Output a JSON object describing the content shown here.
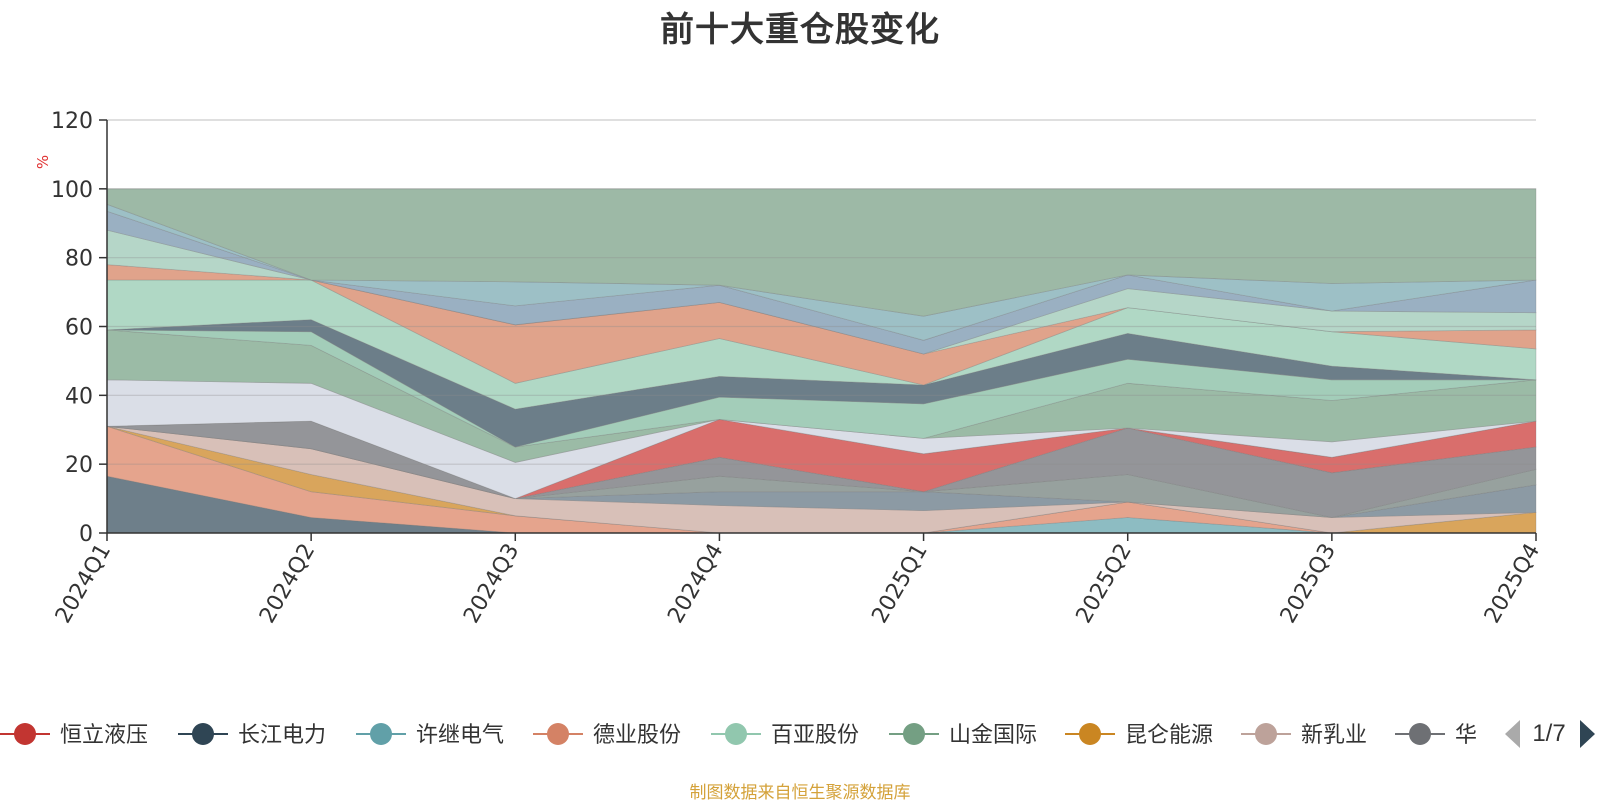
{
  "title": "前十大重仓股变化",
  "source": "制图数据来自恒生聚源数据库",
  "legend": {
    "page": "1/7",
    "items": [
      {
        "name": "恒立液压",
        "color": "#c23531"
      },
      {
        "name": "长江电力",
        "color": "#2f4554"
      },
      {
        "name": "许继电气",
        "color": "#61a0a8"
      },
      {
        "name": "德业股份",
        "color": "#d48265"
      },
      {
        "name": "百亚股份",
        "color": "#91c7ae"
      },
      {
        "name": "山金国际",
        "color": "#749f83"
      },
      {
        "name": "昆仑能源",
        "color": "#ca8622"
      },
      {
        "name": "新乳业",
        "color": "#bda29a"
      },
      {
        "name": "华",
        "color": "#6e7074"
      }
    ]
  },
  "chart_data": {
    "type": "area",
    "stacked": true,
    "ylabel": "%",
    "ylim": [
      0,
      120
    ],
    "yticks": [
      0,
      20,
      40,
      60,
      80,
      100,
      120
    ],
    "categories": [
      "2024Q1",
      "2024Q2",
      "2024Q3",
      "2024Q4",
      "2025Q1",
      "2025Q2",
      "2025Q3",
      "2025Q4"
    ],
    "cumulative_boundaries": [
      [
        16.5,
        4.5,
        0,
        0,
        0,
        0,
        0,
        0
      ],
      [
        16.5,
        4.5,
        0,
        0,
        0,
        4.5,
        0,
        0
      ],
      [
        31,
        12,
        5,
        0,
        0,
        9,
        0,
        0
      ],
      [
        31,
        17,
        5,
        0,
        0,
        9,
        0,
        6
      ],
      [
        31,
        24.5,
        10,
        8,
        6.5,
        9,
        4.5,
        6
      ],
      [
        31,
        24.5,
        10,
        12,
        12,
        9,
        4.5,
        14
      ],
      [
        31,
        24.5,
        10,
        16.5,
        12,
        17,
        4.5,
        18.5
      ],
      [
        31,
        32.5,
        10,
        22,
        12,
        30.5,
        17.5,
        25
      ],
      [
        31,
        32.5,
        10,
        33,
        23,
        30.5,
        22,
        32.5
      ],
      [
        44.5,
        43.5,
        20.5,
        33,
        27.5,
        30.5,
        26.5,
        32.5
      ],
      [
        59,
        54.5,
        25,
        33,
        27.5,
        43.5,
        38.5,
        44.5
      ],
      [
        59,
        58.5,
        25,
        39.5,
        37.5,
        50.5,
        44.5,
        44.5
      ],
      [
        59,
        62,
        36,
        45.5,
        43,
        58,
        48.5,
        44.5
      ],
      [
        73.5,
        73.5,
        43.5,
        56.5,
        43,
        65.5,
        58.5,
        53.5
      ],
      [
        78,
        73.5,
        60.5,
        67,
        52,
        65.5,
        58.5,
        59
      ],
      [
        88,
        73.5,
        60.5,
        67,
        52,
        71,
        64.5,
        64
      ],
      [
        93.5,
        73.5,
        66,
        72,
        56,
        75,
        64.5,
        73.5
      ],
      [
        95.5,
        73.5,
        73,
        72,
        63,
        75,
        72.5,
        73.5
      ],
      [
        100,
        100,
        100,
        100,
        100,
        100,
        100,
        100
      ]
    ],
    "layer_colors": [
      "#6e7f8a",
      "#8dbcc2",
      "#e5a48d",
      "#d9a55c",
      "#d8c0b8",
      "#8c9aa4",
      "#97a19e",
      "#949599",
      "#d96e6c",
      "#dadee7",
      "#9bbba6",
      "#a3cdb9",
      "#6c7e89",
      "#b0d8c5",
      "#e0a38b",
      "#b5d6c8",
      "#9ab0c2",
      "#9dc0c6",
      "#9db9a6"
    ]
  }
}
